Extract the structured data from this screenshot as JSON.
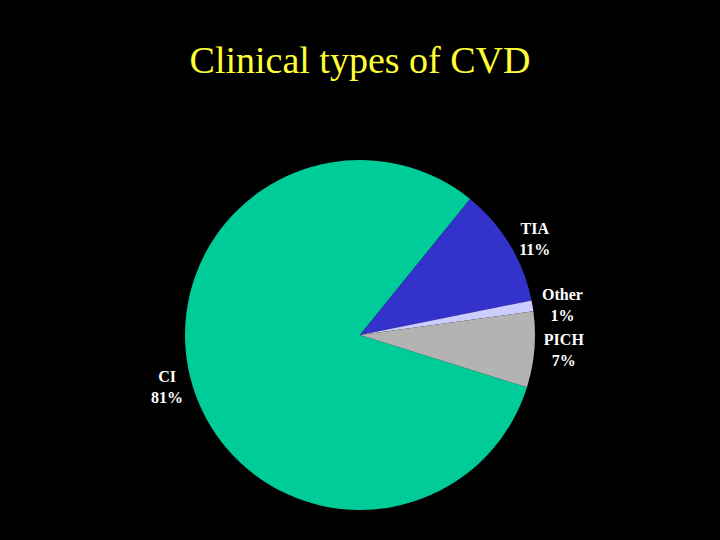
{
  "chart_data": {
    "type": "pie",
    "title": "Clinical types of CVD",
    "categories": [
      "CI",
      "TIA",
      "Other",
      "PICH"
    ],
    "values": [
      81,
      11,
      1,
      7
    ],
    "value_labels": [
      "81%",
      "11%",
      "1%",
      "7%"
    ],
    "colors": [
      "#00cc99",
      "#3333cc",
      "#ccccff",
      "#b3b3b3"
    ],
    "data_labels": true
  }
}
